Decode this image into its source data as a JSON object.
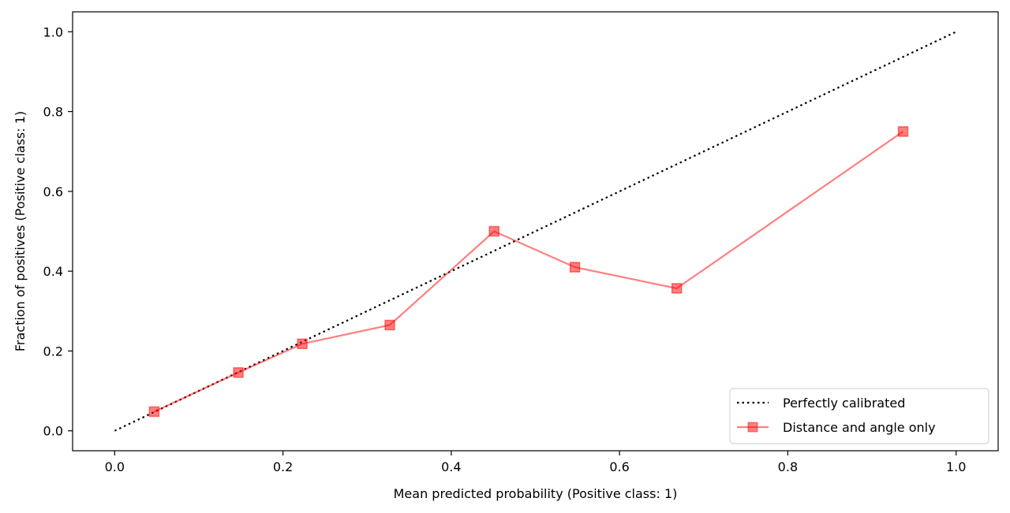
{
  "chart_data": {
    "type": "line",
    "title": "",
    "xlabel": "Mean predicted probability (Positive class: 1)",
    "ylabel": "Fraction of positives (Positive class: 1)",
    "xlim": [
      -0.05,
      1.05
    ],
    "ylim": [
      -0.05,
      1.05
    ],
    "xticks": [
      0.0,
      0.2,
      0.4,
      0.6,
      0.8,
      1.0
    ],
    "yticks": [
      0.0,
      0.2,
      0.4,
      0.6,
      0.8,
      1.0
    ],
    "xtick_labels": [
      "0.0",
      "0.2",
      "0.4",
      "0.6",
      "0.8",
      "1.0"
    ],
    "ytick_labels": [
      "0.0",
      "0.2",
      "0.4",
      "0.6",
      "0.8",
      "1.0"
    ],
    "grid": false,
    "legend_position": "lower-right",
    "series": [
      {
        "name": "Perfectly calibrated",
        "style": "dotted",
        "color": "#000000",
        "x": [
          0.0,
          1.0
        ],
        "y": [
          0.0,
          1.0
        ]
      },
      {
        "name": "Distance and angle only",
        "style": "solid",
        "marker": "square",
        "color": "#ff0000",
        "opacity": 0.5,
        "x": [
          0.047,
          0.147,
          0.223,
          0.327,
          0.451,
          0.547,
          0.668,
          0.937
        ],
        "y": [
          0.048,
          0.146,
          0.218,
          0.265,
          0.5,
          0.41,
          0.357,
          0.75
        ]
      }
    ]
  }
}
